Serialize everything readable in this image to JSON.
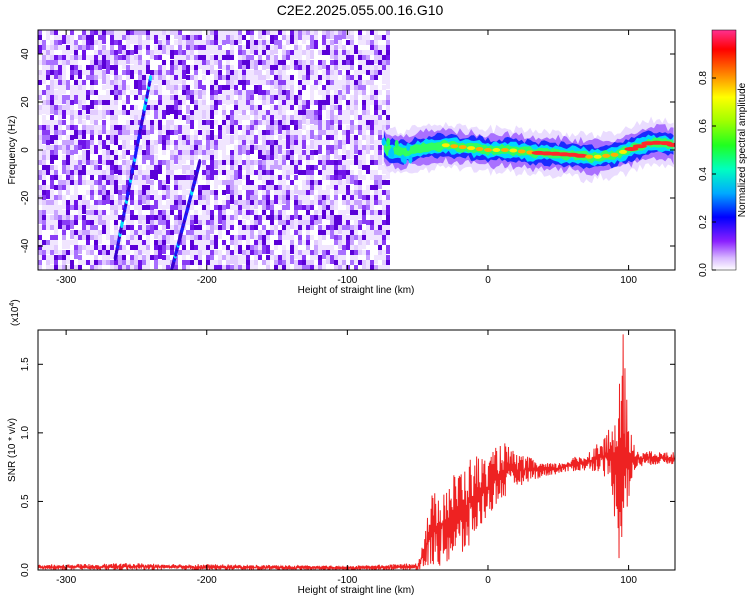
{
  "title": "C2E2.2025.055.00.16.G10",
  "chart_data": [
    {
      "type": "heatmap",
      "xlabel": "Height of straight line (km)",
      "ylabel": "Frequency (Hz)",
      "xlim": [
        -320,
        133
      ],
      "ylim": [
        -50,
        50
      ],
      "x_ticks": [
        -300,
        -200,
        -100,
        0,
        100
      ],
      "y_ticks": [
        -40,
        -20,
        0,
        20,
        40
      ],
      "noise_region_x": [
        -320,
        -72
      ],
      "signal_track": [
        {
          "x": -72,
          "f": 0
        },
        {
          "x": -60,
          "f": -1
        },
        {
          "x": -45,
          "f": 1
        },
        {
          "x": -30,
          "f": 2
        },
        {
          "x": -15,
          "f": 1
        },
        {
          "x": 0,
          "f": 0
        },
        {
          "x": 15,
          "f": 0
        },
        {
          "x": 30,
          "f": -1
        },
        {
          "x": 45,
          "f": -1.5
        },
        {
          "x": 60,
          "f": -2
        },
        {
          "x": 75,
          "f": -3
        },
        {
          "x": 90,
          "f": -2
        },
        {
          "x": 105,
          "f": 1
        },
        {
          "x": 115,
          "f": 3
        },
        {
          "x": 125,
          "f": 3
        },
        {
          "x": 133,
          "f": 2
        }
      ],
      "streaks": [
        {
          "x0": -265,
          "f0": -45,
          "x1": -240,
          "f1": 30
        },
        {
          "x0": -225,
          "f0": -50,
          "x1": -205,
          "f1": -5
        }
      ],
      "colorbar": {
        "label": "Normalized spectral amplitude",
        "ticks": [
          "0.0",
          "0.2",
          "0.4",
          "0.6",
          "0.8"
        ],
        "colors": [
          "#ffffff",
          "#c8a0ff",
          "#6a00ff",
          "#0000ff",
          "#00c8ff",
          "#00ff80",
          "#80ff00",
          "#ffff00",
          "#ff8000",
          "#ff0000",
          "#ff40a0"
        ]
      },
      "grid": false
    },
    {
      "type": "line",
      "xlabel": "Height of straight line (km)",
      "ylabel": "SNR (10 * v/v)",
      "y_multiplier": "(x10",
      "y_multiplier_exp": "4",
      "y_multiplier_close": ")",
      "xlim": [
        -320,
        133
      ],
      "ylim": [
        0,
        1.75
      ],
      "x_ticks": [
        -300,
        -200,
        -100,
        0,
        100
      ],
      "y_ticks": [
        "0.0",
        "0.5",
        "1.0",
        "1.5"
      ],
      "color": "#ee2222",
      "envelope": [
        {
          "x": -320,
          "lo": 0.0,
          "hi": 0.04
        },
        {
          "x": -250,
          "lo": 0.0,
          "hi": 0.05
        },
        {
          "x": -180,
          "lo": 0.0,
          "hi": 0.04
        },
        {
          "x": -100,
          "lo": 0.0,
          "hi": 0.03
        },
        {
          "x": -50,
          "lo": 0.0,
          "hi": 0.05
        },
        {
          "x": -45,
          "lo": 0.0,
          "hi": 0.3
        },
        {
          "x": -40,
          "lo": 0.02,
          "hi": 0.55
        },
        {
          "x": -30,
          "lo": 0.03,
          "hi": 0.65
        },
        {
          "x": -20,
          "lo": 0.05,
          "hi": 0.75
        },
        {
          "x": -10,
          "lo": 0.2,
          "hi": 0.85
        },
        {
          "x": 0,
          "lo": 0.4,
          "hi": 0.82
        },
        {
          "x": 10,
          "lo": 0.5,
          "hi": 0.95
        },
        {
          "x": 20,
          "lo": 0.6,
          "hi": 0.85
        },
        {
          "x": 30,
          "lo": 0.65,
          "hi": 0.82
        },
        {
          "x": 40,
          "lo": 0.68,
          "hi": 0.78
        },
        {
          "x": 50,
          "lo": 0.7,
          "hi": 0.78
        },
        {
          "x": 60,
          "lo": 0.72,
          "hi": 0.82
        },
        {
          "x": 70,
          "lo": 0.72,
          "hi": 0.85
        },
        {
          "x": 80,
          "lo": 0.72,
          "hi": 0.95
        },
        {
          "x": 88,
          "lo": 0.6,
          "hi": 1.05
        },
        {
          "x": 93,
          "lo": 0.05,
          "hi": 1.3
        },
        {
          "x": 96,
          "lo": 0.2,
          "hi": 1.75
        },
        {
          "x": 100,
          "lo": 0.5,
          "hi": 1.05
        },
        {
          "x": 106,
          "lo": 0.75,
          "hi": 0.88
        },
        {
          "x": 120,
          "lo": 0.77,
          "hi": 0.86
        },
        {
          "x": 133,
          "lo": 0.77,
          "hi": 0.86
        }
      ]
    }
  ]
}
